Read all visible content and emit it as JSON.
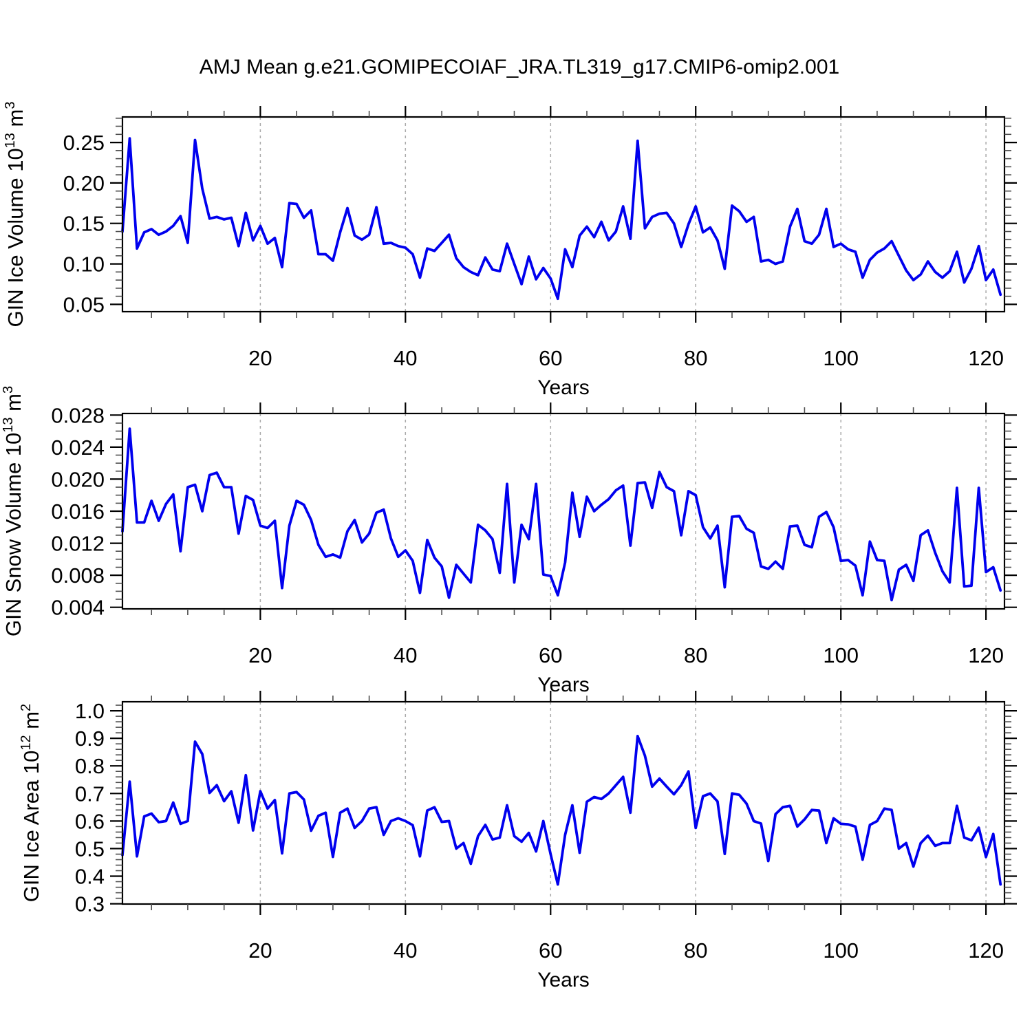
{
  "title": "AMJ Mean g.e21.GOMIPECOIAF_JRA.TL319_g17.CMIP6-omip2.001",
  "colors": {
    "line": "#0000EE",
    "frame": "#000000",
    "grid": "#A9A9A9",
    "minor_tick": "#4D4D4D",
    "major_tick": "#000000",
    "background": "#FFFFFF"
  },
  "chart_data": [
    {
      "type": "line",
      "name": "gin-ice-volume",
      "xlabel": "Years",
      "ylabel_segments": [
        {
          "t": "GIN Ice Volume 10",
          "sup": false
        },
        {
          "t": "13",
          "sup": true
        },
        {
          "t": " m",
          "sup": false
        },
        {
          "t": "3",
          "sup": true
        }
      ],
      "x_start": 1,
      "xlim": [
        1,
        122.55
      ],
      "ylim": [
        0.041,
        0.2815
      ],
      "xticks": [
        20,
        40,
        60,
        80,
        100,
        120
      ],
      "xtick_labels": [
        "20",
        "40",
        "60",
        "80",
        "100",
        "120"
      ],
      "yticks": [
        0.05,
        0.1,
        0.15,
        0.2,
        0.25
      ],
      "ytick_labels": [
        "0.05",
        "0.10",
        "0.15",
        "0.20",
        "0.25"
      ],
      "x_minor_step": 5,
      "y_minor_step": 0.01,
      "grid": "vertical-dashed",
      "legend": "none",
      "values": [
        0.14,
        0.255,
        0.119,
        0.139,
        0.143,
        0.136,
        0.14,
        0.147,
        0.159,
        0.126,
        0.253,
        0.193,
        0.156,
        0.158,
        0.155,
        0.157,
        0.122,
        0.163,
        0.129,
        0.147,
        0.125,
        0.132,
        0.096,
        0.175,
        0.174,
        0.157,
        0.166,
        0.112,
        0.112,
        0.104,
        0.139,
        0.169,
        0.135,
        0.13,
        0.136,
        0.17,
        0.125,
        0.126,
        0.122,
        0.12,
        0.112,
        0.083,
        0.119,
        0.116,
        0.126,
        0.136,
        0.107,
        0.096,
        0.09,
        0.086,
        0.108,
        0.093,
        0.091,
        0.125,
        0.1,
        0.075,
        0.109,
        0.081,
        0.095,
        0.082,
        0.057,
        0.118,
        0.096,
        0.135,
        0.146,
        0.133,
        0.152,
        0.129,
        0.14,
        0.171,
        0.131,
        0.252,
        0.144,
        0.158,
        0.162,
        0.163,
        0.15,
        0.121,
        0.149,
        0.171,
        0.139,
        0.145,
        0.129,
        0.094,
        0.172,
        0.165,
        0.152,
        0.158,
        0.103,
        0.105,
        0.1,
        0.103,
        0.146,
        0.168,
        0.128,
        0.125,
        0.136,
        0.168,
        0.121,
        0.125,
        0.118,
        0.115,
        0.083,
        0.105,
        0.114,
        0.119,
        0.128,
        0.11,
        0.092,
        0.08,
        0.087,
        0.103,
        0.09,
        0.083,
        0.091,
        0.115,
        0.077,
        0.094,
        0.122,
        0.08,
        0.093,
        0.062
      ]
    },
    {
      "type": "line",
      "name": "gin-snow-volume",
      "xlabel": "Years",
      "ylabel_segments": [
        {
          "t": "GIN Snow Volume 10",
          "sup": false
        },
        {
          "t": "13",
          "sup": true
        },
        {
          "t": " m",
          "sup": false
        },
        {
          "t": "3",
          "sup": true
        }
      ],
      "x_start": 1,
      "xlim": [
        1,
        122.55
      ],
      "ylim": [
        0.0038,
        0.0282
      ],
      "xticks": [
        20,
        40,
        60,
        80,
        100,
        120
      ],
      "xtick_labels": [
        "20",
        "40",
        "60",
        "80",
        "100",
        "120"
      ],
      "yticks": [
        0.004,
        0.008,
        0.012,
        0.016,
        0.02,
        0.024,
        0.028
      ],
      "ytick_labels": [
        "0.004",
        "0.008",
        "0.012",
        "0.016",
        "0.020",
        "0.024",
        "0.028"
      ],
      "x_minor_step": 5,
      "y_minor_step": 0.001,
      "grid": "vertical-dashed",
      "legend": "none",
      "values": [
        0.0135,
        0.0263,
        0.0146,
        0.0146,
        0.0173,
        0.0148,
        0.0169,
        0.0181,
        0.011,
        0.019,
        0.0193,
        0.016,
        0.0205,
        0.0208,
        0.019,
        0.019,
        0.0132,
        0.0179,
        0.0174,
        0.0142,
        0.0139,
        0.0148,
        0.0064,
        0.0142,
        0.0173,
        0.0168,
        0.0149,
        0.0118,
        0.0103,
        0.0106,
        0.0102,
        0.0135,
        0.0149,
        0.0121,
        0.0132,
        0.0158,
        0.0162,
        0.0126,
        0.0103,
        0.0111,
        0.0098,
        0.0058,
        0.0124,
        0.0102,
        0.0091,
        0.0052,
        0.0093,
        0.0082,
        0.0071,
        0.0143,
        0.0136,
        0.0125,
        0.0083,
        0.0194,
        0.0071,
        0.0143,
        0.0125,
        0.0194,
        0.0081,
        0.0079,
        0.0055,
        0.0096,
        0.0183,
        0.0128,
        0.0178,
        0.016,
        0.0168,
        0.0175,
        0.0186,
        0.0192,
        0.0117,
        0.0195,
        0.0196,
        0.0164,
        0.0209,
        0.019,
        0.0185,
        0.013,
        0.0185,
        0.018,
        0.014,
        0.0126,
        0.0142,
        0.0065,
        0.0153,
        0.0154,
        0.0138,
        0.0133,
        0.0091,
        0.0088,
        0.0097,
        0.0088,
        0.0141,
        0.0142,
        0.0118,
        0.0115,
        0.0153,
        0.0159,
        0.014,
        0.0098,
        0.0099,
        0.0092,
        0.0055,
        0.0122,
        0.0099,
        0.0098,
        0.0049,
        0.0087,
        0.0093,
        0.0073,
        0.013,
        0.0136,
        0.0108,
        0.0085,
        0.0071,
        0.0189,
        0.0066,
        0.0067,
        0.0189,
        0.0084,
        0.009,
        0.0061
      ]
    },
    {
      "type": "line",
      "name": "gin-ice-area",
      "xlabel": "Years",
      "ylabel_segments": [
        {
          "t": "GIN Ice Area 10",
          "sup": false
        },
        {
          "t": "12",
          "sup": true
        },
        {
          "t": " m",
          "sup": false
        },
        {
          "t": "2",
          "sup": true
        }
      ],
      "x_start": 1,
      "xlim": [
        1,
        122.55
      ],
      "ylim": [
        0.299,
        1.0326
      ],
      "xticks": [
        20,
        40,
        60,
        80,
        100,
        120
      ],
      "xtick_labels": [
        "20",
        "40",
        "60",
        "80",
        "100",
        "120"
      ],
      "yticks": [
        0.3,
        0.4,
        0.5,
        0.6,
        0.7,
        0.8,
        0.9,
        1.0
      ],
      "ytick_labels": [
        "0.3",
        "0.4",
        "0.5",
        "0.6",
        "0.7",
        "0.8",
        "0.9",
        "1.0"
      ],
      "x_minor_step": 5,
      "y_minor_step": 0.02,
      "grid": "vertical-dashed",
      "legend": "none",
      "values": [
        0.477,
        0.743,
        0.472,
        0.617,
        0.627,
        0.596,
        0.6,
        0.667,
        0.59,
        0.6,
        0.888,
        0.843,
        0.702,
        0.73,
        0.672,
        0.708,
        0.594,
        0.766,
        0.566,
        0.708,
        0.645,
        0.676,
        0.483,
        0.7,
        0.705,
        0.678,
        0.565,
        0.619,
        0.63,
        0.47,
        0.63,
        0.645,
        0.575,
        0.6,
        0.645,
        0.65,
        0.55,
        0.6,
        0.61,
        0.6,
        0.585,
        0.472,
        0.638,
        0.65,
        0.597,
        0.6,
        0.5,
        0.52,
        0.445,
        0.545,
        0.586,
        0.533,
        0.54,
        0.657,
        0.545,
        0.525,
        0.557,
        0.49,
        0.6,
        0.48,
        0.37,
        0.55,
        0.657,
        0.485,
        0.67,
        0.687,
        0.68,
        0.7,
        0.73,
        0.76,
        0.63,
        0.908,
        0.837,
        0.725,
        0.754,
        0.725,
        0.697,
        0.73,
        0.78,
        0.575,
        0.69,
        0.7,
        0.671,
        0.481,
        0.7,
        0.695,
        0.663,
        0.6,
        0.591,
        0.455,
        0.625,
        0.65,
        0.655,
        0.58,
        0.606,
        0.64,
        0.638,
        0.52,
        0.61,
        0.59,
        0.588,
        0.58,
        0.46,
        0.586,
        0.6,
        0.645,
        0.64,
        0.5,
        0.52,
        0.435,
        0.52,
        0.547,
        0.51,
        0.52,
        0.52,
        0.655,
        0.54,
        0.53,
        0.576,
        0.47,
        0.553,
        0.37
      ]
    }
  ]
}
